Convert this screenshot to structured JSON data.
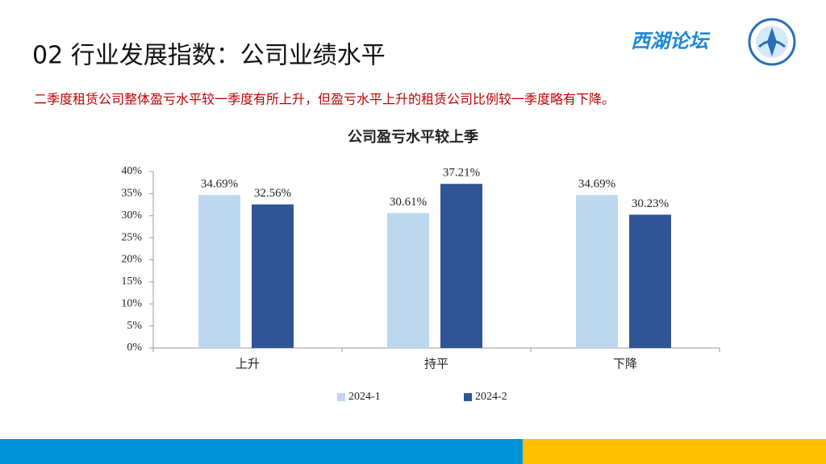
{
  "header": {
    "title": "02 行业发展指数：公司业绩水平",
    "logo_text": "西湖论坛"
  },
  "subtitle": "二季度租赁公司整体盈亏水平较一季度有所上升，但盈亏水平上升的租赁公司比例较一季度略有下降。",
  "chart_data": {
    "type": "bar",
    "title": "公司盈亏水平较上季",
    "categories": [
      "上升",
      "持平",
      "下降"
    ],
    "series": [
      {
        "name": "2024-1",
        "color": "#bdd7ee",
        "values": [
          34.69,
          30.61,
          34.69
        ],
        "value_labels": [
          "34.69%",
          "30.61%",
          "34.69%"
        ]
      },
      {
        "name": "2024-2",
        "color": "#2f5597",
        "values": [
          32.56,
          37.21,
          30.23
        ],
        "value_labels": [
          "32.56%",
          "37.21%",
          "30.23%"
        ]
      }
    ],
    "ylim": [
      0,
      40
    ],
    "yticks": [
      {
        "value": 0,
        "label": "0%"
      },
      {
        "value": 5,
        "label": "5%"
      },
      {
        "value": 10,
        "label": "10%"
      },
      {
        "value": 15,
        "label": "15%"
      },
      {
        "value": 20,
        "label": "20%"
      },
      {
        "value": 25,
        "label": "25%"
      },
      {
        "value": 30,
        "label": "30%"
      },
      {
        "value": 35,
        "label": "35%"
      },
      {
        "value": 40,
        "label": "40%"
      }
    ],
    "grid": false,
    "legend": "bottom"
  }
}
